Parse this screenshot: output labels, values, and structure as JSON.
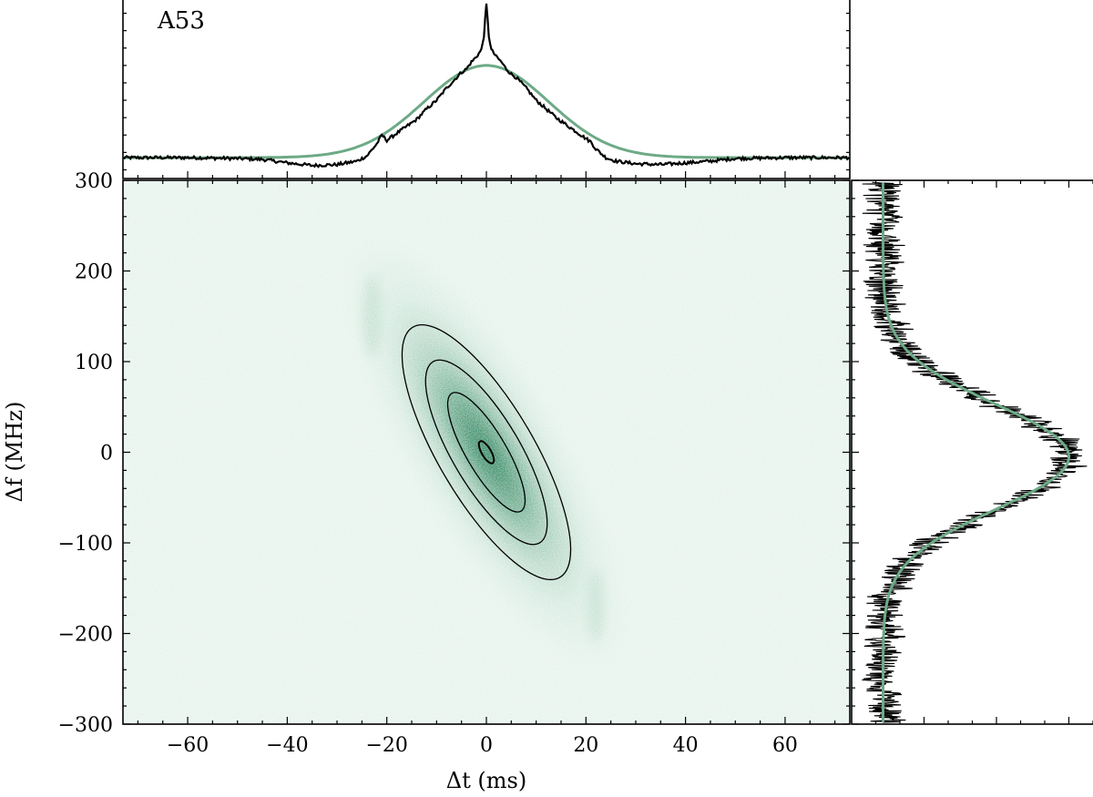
{
  "chart_data": [
    {
      "panel": "top",
      "type": "line",
      "label": "A53",
      "xlim": [
        -73,
        73
      ],
      "ylim": [
        0,
        1
      ],
      "yticklabels": false,
      "series": [
        {
          "role": "data",
          "color": "#000000",
          "x": [
            -73,
            -60,
            -50,
            -45,
            -40,
            -35,
            -30,
            -26,
            -24,
            -22,
            -21,
            -20,
            -18,
            -16,
            -14,
            -12,
            -10,
            -8,
            -6,
            -5,
            -4,
            -3,
            -2,
            -1,
            -0.5,
            0,
            0.5,
            1,
            2,
            3,
            4,
            5,
            6,
            8,
            10,
            12,
            14,
            16,
            18,
            20,
            21,
            22,
            24,
            26,
            30,
            35,
            40,
            45,
            50,
            60,
            73
          ],
          "y": [
            0.12,
            0.12,
            0.115,
            0.11,
            0.09,
            0.075,
            0.08,
            0.1,
            0.13,
            0.2,
            0.25,
            0.22,
            0.26,
            0.3,
            0.34,
            0.4,
            0.45,
            0.52,
            0.58,
            0.61,
            0.63,
            0.67,
            0.7,
            0.74,
            0.82,
            1.0,
            0.82,
            0.74,
            0.7,
            0.67,
            0.63,
            0.6,
            0.58,
            0.52,
            0.45,
            0.4,
            0.35,
            0.31,
            0.27,
            0.23,
            0.21,
            0.17,
            0.12,
            0.1,
            0.085,
            0.08,
            0.09,
            0.1,
            0.115,
            0.12,
            0.12
          ]
        },
        {
          "role": "fit",
          "color": "#6daa86",
          "model": "gaussian",
          "baseline": 0.12,
          "amplitude": 0.53,
          "center": 0,
          "sigma": 12.5
        }
      ]
    },
    {
      "panel": "main",
      "type": "heatmap",
      "xlabel": "Δt (ms)",
      "ylabel": "Δf (MHz)",
      "xlim": [
        -73,
        73
      ],
      "ylim": [
        -300,
        300
      ],
      "xticks": [
        -60,
        -40,
        -20,
        0,
        20,
        40,
        60
      ],
      "xticklabels": [
        "−60",
        "−40",
        "−20",
        "0",
        "20",
        "40",
        "60"
      ],
      "yticks": [
        -300,
        -200,
        -100,
        0,
        100,
        200,
        300
      ],
      "yticklabels": [
        "−300",
        "−200",
        "−100",
        "0",
        "100",
        "200",
        "300"
      ],
      "colormap": [
        "#e6f3ec",
        "#1b7a4e"
      ],
      "peak": {
        "x": 0,
        "y": 0
      },
      "drift_ms_per_MHz": -0.107,
      "contours": [
        {
          "center": [
            0,
            0
          ],
          "x_extent": 1.5,
          "y_extent": 12
        },
        {
          "center": [
            0,
            0
          ],
          "x_extent": 6.5,
          "y_extent": 65
        },
        {
          "center": [
            0,
            0
          ],
          "x_extent": 11,
          "y_extent": 100
        },
        {
          "center": [
            0,
            0
          ],
          "x_extent": 15.5,
          "y_extent": 138
        }
      ],
      "contour_color": "#000000"
    },
    {
      "panel": "right",
      "type": "line",
      "orientation": "horizontal",
      "ylim": [
        -300,
        300
      ],
      "xticklabels": false,
      "series": [
        {
          "role": "data",
          "color": "#000000",
          "noise_amplitude": 0.07
        },
        {
          "role": "fit",
          "color": "#6daa86",
          "model": "gaussian",
          "baseline": 0.13,
          "amplitude": 0.77,
          "center": -5,
          "sigma": 58
        }
      ]
    }
  ]
}
